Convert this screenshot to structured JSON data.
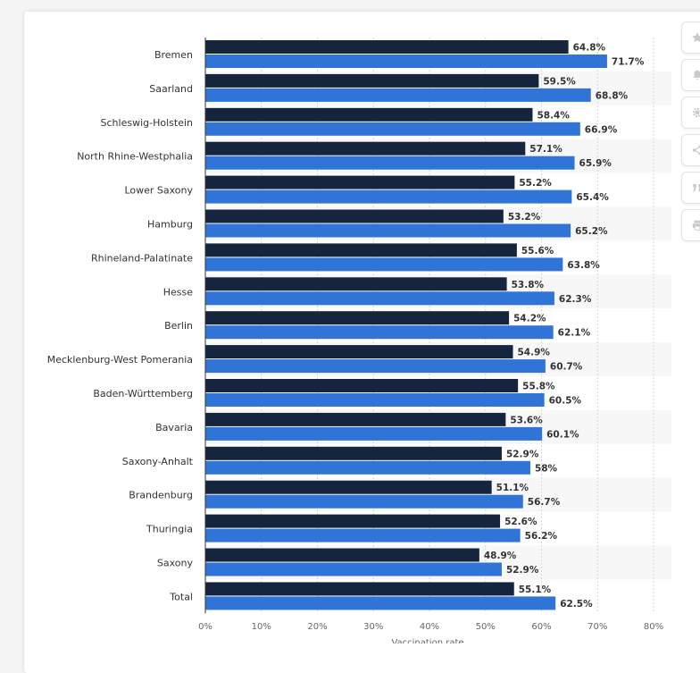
{
  "chart_data": {
    "type": "bar",
    "orientation": "horizontal",
    "categories": [
      "Bremen",
      "Saarland",
      "Schleswig-Holstein",
      "North Rhine-Westphalia",
      "Lower Saxony",
      "Hamburg",
      "Rhineland-Palatinate",
      "Hesse",
      "Berlin",
      "Mecklenburg-West Pomerania",
      "Baden-Württemberg",
      "Bavaria",
      "Saxony-Anhalt",
      "Brandenburg",
      "Thuringia",
      "Saxony",
      "Total"
    ],
    "series": [
      {
        "color": "#14253d",
        "values": [
          64.8,
          59.5,
          58.4,
          57.1,
          55.2,
          53.2,
          55.6,
          53.8,
          54.2,
          54.9,
          55.8,
          53.6,
          52.9,
          51.1,
          52.6,
          48.9,
          55.1
        ],
        "labels": [
          "64.8%",
          "59.5%",
          "58.4%",
          "57.1%",
          "55.2%",
          "53.2%",
          "55.6%",
          "53.8%",
          "54.2%",
          "54.9%",
          "55.8%",
          "53.6%",
          "52.9%",
          "51.1%",
          "52.6%",
          "48.9%",
          "55.1%"
        ]
      },
      {
        "color": "#2f74d6",
        "values": [
          71.7,
          68.8,
          66.9,
          65.9,
          65.4,
          65.2,
          63.8,
          62.3,
          62.1,
          60.7,
          60.5,
          60.1,
          58,
          56.7,
          56.2,
          52.9,
          62.5
        ],
        "labels": [
          "71.7%",
          "68.8%",
          "66.9%",
          "65.9%",
          "65.4%",
          "65.2%",
          "63.8%",
          "62.3%",
          "62.1%",
          "60.7%",
          "60.5%",
          "60.1%",
          "58%",
          "56.7%",
          "56.2%",
          "52.9%",
          "62.5%"
        ]
      }
    ],
    "xlim": [
      0,
      80
    ],
    "ticks": [
      "0%",
      "10%",
      "20%",
      "30%",
      "40%",
      "50%",
      "60%",
      "70%",
      "80%"
    ],
    "xlabel": "Vaccination rate",
    "grid": true
  },
  "toolbar": {
    "icons": [
      "star-icon",
      "bell-icon",
      "gear-icon",
      "share-icon",
      "quote-icon",
      "print-icon"
    ]
  }
}
